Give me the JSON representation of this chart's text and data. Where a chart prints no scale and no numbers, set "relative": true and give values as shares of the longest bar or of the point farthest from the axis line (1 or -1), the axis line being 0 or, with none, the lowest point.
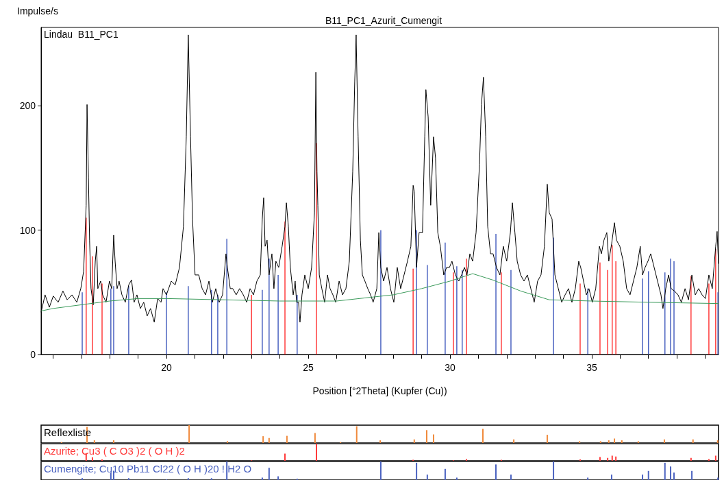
{
  "chart_data": [
    {
      "type": "line",
      "title": "B11_PC1_Azurit_Cumengit",
      "ylabel": "Impulse/s",
      "xlabel": "Position [°2Theta] (Kupfer (Cu))",
      "annotations": [
        "Lindau  B11_PC1"
      ],
      "xlim": [
        15.58,
        39.47
      ],
      "ylim": [
        0,
        263
      ],
      "xticks": [
        {
          "value": 16,
          "label": null
        },
        {
          "value": 17,
          "label": null
        },
        {
          "value": 18,
          "label": null
        },
        {
          "value": 19,
          "label": null
        },
        20,
        {
          "value": 21,
          "label": null
        },
        {
          "value": 22,
          "label": null
        },
        {
          "value": 23,
          "label": null
        },
        {
          "value": 24,
          "label": null
        },
        25,
        {
          "value": 26,
          "label": null
        },
        {
          "value": 27,
          "label": null
        },
        {
          "value": 28,
          "label": null
        },
        {
          "value": 29,
          "label": null
        },
        30,
        {
          "value": 31,
          "label": null
        },
        {
          "value": 32,
          "label": null
        },
        {
          "value": 33,
          "label": null
        },
        {
          "value": 34,
          "label": null
        },
        35,
        {
          "value": 36,
          "label": null
        },
        {
          "value": 37,
          "label": null
        },
        {
          "value": 38,
          "label": null
        },
        {
          "value": 39,
          "label": null
        }
      ],
      "yticks": [
        0,
        100,
        200
      ],
      "marker": "none",
      "line_style": "solid",
      "series": [
        {
          "type": "bar",
          "color": "#4a62c0",
          "x": [
            17.03,
            18.04,
            18.14,
            18.67,
            20.0,
            20.77,
            21.59,
            21.81,
            22.13,
            23.38,
            23.62,
            23.94,
            24.61,
            27.56,
            28.82,
            29.2,
            29.83,
            30.24,
            30.43,
            31.62,
            32.15,
            33.65,
            34.86,
            36.79,
            37.0,
            37.58,
            37.78,
            37.9,
            39.45
          ],
          "values": [
            50,
            53,
            55,
            55,
            50,
            55,
            52,
            48,
            93,
            52,
            77,
            64,
            48,
            100,
            100,
            72,
            90,
            71,
            68,
            97,
            68,
            94,
            53,
            61,
            67,
            66,
            77,
            75,
            50
          ]
        },
        {
          "type": "bar",
          "color": "#ff3b3b",
          "x": [
            17.17,
            17.39,
            17.73,
            23.0,
            24.18,
            25.29,
            28.7,
            30.12,
            30.58,
            31.81,
            34.59,
            35.29,
            35.56,
            35.72,
            35.85,
            38.5,
            39.13,
            39.37
          ],
          "values": [
            110,
            79,
            57,
            48,
            107,
            170,
            69,
            66,
            77,
            66,
            57,
            74,
            68,
            88,
            75,
            63,
            57,
            85
          ]
        },
        {
          "color": "#000000",
          "x": [
            15.58,
            15.72,
            15.87,
            16.01,
            16.18,
            16.35,
            16.5,
            16.67,
            16.84,
            16.98,
            17.08,
            17.17,
            17.2,
            17.25,
            17.29,
            17.34,
            17.42,
            17.49,
            17.54,
            17.58,
            17.68,
            17.75,
            17.87,
            17.99,
            18.07,
            18.14,
            18.19,
            18.26,
            18.33,
            18.43,
            18.55,
            18.67,
            18.77,
            18.86,
            18.96,
            19.08,
            19.2,
            19.32,
            19.44,
            19.57,
            19.69,
            19.81,
            19.88,
            20.0,
            20.17,
            20.31,
            20.46,
            20.6,
            20.7,
            20.77,
            20.85,
            20.92,
            21.01,
            21.14,
            21.26,
            21.38,
            21.5,
            21.62,
            21.74,
            21.86,
            21.98,
            22.1,
            22.15,
            22.25,
            22.34,
            22.46,
            22.58,
            22.71,
            22.83,
            22.95,
            23.07,
            23.19,
            23.31,
            23.38,
            23.43,
            23.48,
            23.55,
            23.62,
            23.72,
            23.79,
            23.86,
            23.96,
            24.08,
            24.18,
            24.23,
            24.3,
            24.37,
            24.47,
            24.54,
            24.59,
            24.66,
            24.71,
            24.78,
            24.88,
            25.0,
            25.12,
            25.22,
            25.27,
            25.31,
            25.34,
            25.39,
            25.48,
            25.58,
            25.68,
            25.77,
            25.87,
            25.97,
            26.09,
            26.21,
            26.33,
            26.45,
            26.57,
            26.64,
            26.69,
            26.76,
            26.84,
            26.91,
            27.0,
            27.1,
            27.2,
            27.29,
            27.42,
            27.49,
            27.56,
            27.66,
            27.78,
            27.9,
            28.02,
            28.14,
            28.26,
            28.38,
            28.5,
            28.62,
            28.7,
            28.74,
            28.82,
            28.91,
            29.03,
            29.11,
            29.15,
            29.23,
            29.32,
            29.42,
            29.49,
            29.57,
            29.66,
            29.78,
            29.88,
            29.98,
            30.07,
            30.19,
            30.31,
            30.41,
            30.51,
            30.6,
            30.7,
            30.8,
            30.92,
            31.04,
            31.11,
            31.18,
            31.26,
            31.33,
            31.43,
            31.52,
            31.64,
            31.76,
            31.88,
            32.0,
            32.13,
            32.2,
            32.29,
            32.37,
            32.49,
            32.61,
            32.73,
            32.85,
            32.97,
            33.09,
            33.21,
            33.33,
            33.43,
            33.5,
            33.6,
            33.7,
            33.82,
            33.94,
            34.06,
            34.18,
            34.3,
            34.42,
            34.54,
            34.61,
            34.71,
            34.81,
            34.9,
            35.02,
            35.14,
            35.27,
            35.34,
            35.43,
            35.53,
            35.6,
            35.7,
            35.8,
            35.87,
            35.99,
            36.11,
            36.23,
            36.35,
            36.47,
            36.59,
            36.71,
            36.79,
            36.88,
            36.98,
            37.08,
            37.2,
            37.32,
            37.44,
            37.51,
            37.61,
            37.71,
            37.8,
            37.92,
            38.04,
            38.16,
            38.29,
            38.41,
            38.53,
            38.65,
            38.77,
            38.89,
            39.01,
            39.13,
            39.25,
            39.37,
            39.42,
            39.47
          ],
          "values": [
            34,
            48,
            38,
            47,
            42,
            51,
            44,
            48,
            42,
            53,
            67,
            120,
            201,
            142,
            92,
            53,
            40,
            75,
            87,
            53,
            59,
            48,
            42,
            59,
            53,
            96,
            75,
            53,
            59,
            48,
            42,
            56,
            60,
            42,
            48,
            37,
            42,
            31,
            37,
            26,
            45,
            42,
            53,
            48,
            59,
            56,
            70,
            103,
            175,
            257,
            175,
            109,
            64,
            64,
            53,
            48,
            59,
            42,
            53,
            42,
            48,
            81,
            70,
            53,
            53,
            48,
            53,
            48,
            42,
            53,
            48,
            59,
            64,
            109,
            126,
            87,
            92,
            64,
            81,
            53,
            75,
            70,
            87,
            103,
            122,
            103,
            70,
            48,
            59,
            42,
            42,
            26,
            48,
            64,
            53,
            70,
            114,
            227,
            147,
            120,
            64,
            53,
            42,
            64,
            53,
            48,
            42,
            59,
            48,
            53,
            75,
            147,
            219,
            257,
            175,
            92,
            64,
            59,
            53,
            48,
            42,
            53,
            98,
            70,
            59,
            70,
            53,
            42,
            70,
            53,
            64,
            75,
            87,
            136,
            131,
            70,
            98,
            98,
            175,
            213,
            191,
            120,
            175,
            158,
            98,
            87,
            64,
            70,
            70,
            75,
            64,
            59,
            64,
            70,
            64,
            81,
            75,
            98,
            153,
            201,
            223,
            175,
            103,
            81,
            81,
            70,
            64,
            87,
            75,
            98,
            122,
            98,
            75,
            64,
            59,
            64,
            53,
            42,
            59,
            64,
            87,
            137,
            114,
            109,
            64,
            53,
            42,
            48,
            53,
            42,
            53,
            75,
            70,
            59,
            48,
            53,
            42,
            53,
            87,
            81,
            92,
            98,
            75,
            89,
            106,
            92,
            87,
            75,
            53,
            48,
            59,
            70,
            87,
            64,
            70,
            75,
            81,
            70,
            59,
            48,
            37,
            53,
            64,
            53,
            51,
            48,
            42,
            53,
            44,
            64,
            48,
            53,
            48,
            45,
            64,
            53,
            87,
            99,
            73
          ]
        },
        {
          "color": "#3a9a5a",
          "x": [
            15.58,
            16.0,
            17.0,
            18.0,
            19.0,
            20.0,
            22.0,
            24.0,
            26.0,
            28.0,
            29.0,
            30.0,
            30.8,
            31.5,
            32.5,
            33.5,
            35.0,
            37.0,
            39.47
          ],
          "values": [
            35,
            37,
            40,
            43,
            45,
            45,
            44,
            43,
            43,
            48,
            53,
            59,
            65,
            60,
            51,
            44,
            43,
            42,
            41
          ]
        }
      ]
    },
    {
      "type": "bar",
      "title": "Reflexliste",
      "relative": true,
      "color": "#f08a3c",
      "xlim": [
        15.58,
        39.47
      ],
      "x": [
        16.3,
        17.2,
        17.46,
        18.14,
        20.8,
        22.15,
        23.41,
        23.62,
        24.25,
        25.24,
        26.14,
        26.71,
        27.54,
        28.74,
        29.18,
        29.42,
        31.16,
        32.25,
        33.43,
        34.57,
        35.31,
        35.6,
        35.8,
        36.06,
        36.64,
        37.56,
        38.57,
        39.44
      ],
      "values": [
        0.05,
        0.9,
        0.15,
        0.15,
        1,
        0.1,
        0.38,
        0.28,
        0.4,
        0.56,
        0.05,
        0.94,
        0.15,
        0.2,
        0.72,
        0.48,
        0.79,
        0.2,
        0.46,
        0.1,
        0.1,
        0.15,
        0.25,
        0.15,
        0.1,
        0.2,
        0.2,
        0.15
      ]
    },
    {
      "type": "bar",
      "title": "Azurite; Cu3 ( C O3 )2 ( O H )2",
      "relative": true,
      "color": "#ff3b3b",
      "xlim": [
        15.58,
        39.47
      ],
      "x": [
        17.17,
        17.39,
        17.73,
        23.0,
        24.18,
        25.29,
        28.7,
        30.12,
        30.58,
        31.81,
        34.59,
        35.29,
        35.56,
        35.72,
        35.85,
        38.5,
        39.13,
        39.37
      ],
      "values": [
        0.45,
        0.2,
        0.08,
        0.03,
        0.42,
        1,
        0.06,
        0.03,
        0.1,
        0.06,
        0.08,
        0.22,
        0.17,
        0.3,
        0.25,
        0.17,
        0.1,
        0.3
      ]
    },
    {
      "type": "bar",
      "title": "Cumengite; Cu10 Pb11 Cl22 ( O H )20 ! H2 O",
      "relative": true,
      "color": "#4a62c0",
      "xlim": [
        15.58,
        39.47
      ],
      "x": [
        17.03,
        18.04,
        18.14,
        18.67,
        20.0,
        20.77,
        21.59,
        22.13,
        23.38,
        23.62,
        23.94,
        24.61,
        27.56,
        28.82,
        29.2,
        29.83,
        30.24,
        31.62,
        32.15,
        33.65,
        34.86,
        35.7,
        36.79,
        37.0,
        37.58,
        37.78,
        37.9,
        38.53,
        39.45
      ],
      "values": [
        0.1,
        0.4,
        0.5,
        0.1,
        0.03,
        0.1,
        0.1,
        1,
        0.13,
        0.66,
        0.2,
        0.07,
        1,
        0.93,
        0.29,
        0.6,
        0.13,
        0.84,
        0.29,
        1,
        0.13,
        0.29,
        0.29,
        0.49,
        0.93,
        0.73,
        0.4,
        0.49,
        0.13
      ]
    }
  ]
}
